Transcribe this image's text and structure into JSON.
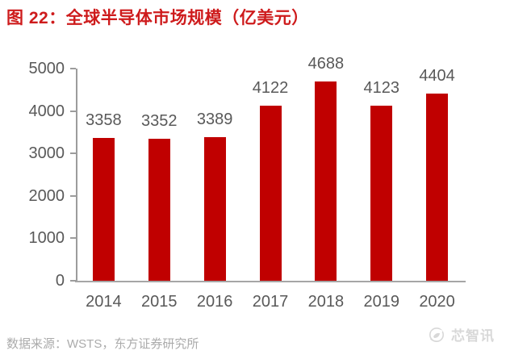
{
  "header": {
    "title": "图 22：全球半导体市场规模（亿美元）"
  },
  "footer": {
    "source": "数据来源：WSTS，东方证券研究所",
    "watermark": "芯智讯"
  },
  "icons": {
    "watermark_logo": "xinzhixun-logo"
  },
  "colors": {
    "title": "#ce1b1c",
    "bar": "#c00000",
    "axis_label": "#595959",
    "axis_line": "#9c9c9c",
    "source_text": "#ababab",
    "watermark": "#d8d8d8"
  },
  "chart_data": {
    "type": "bar",
    "title": "图 22：全球半导体市场规模（亿美元）",
    "categories": [
      "2014",
      "2015",
      "2016",
      "2017",
      "2018",
      "2019",
      "2020"
    ],
    "values": [
      3358,
      3352,
      3389,
      4122,
      4688,
      4123,
      4404
    ],
    "xlabel": "",
    "ylabel": "",
    "unit": "亿美元",
    "ylim": [
      0,
      5000
    ],
    "yticks": [
      0,
      1000,
      2000,
      3000,
      4000,
      5000
    ],
    "grid": false,
    "legend": false,
    "data_labels": true,
    "bar_color": "#c00000"
  }
}
